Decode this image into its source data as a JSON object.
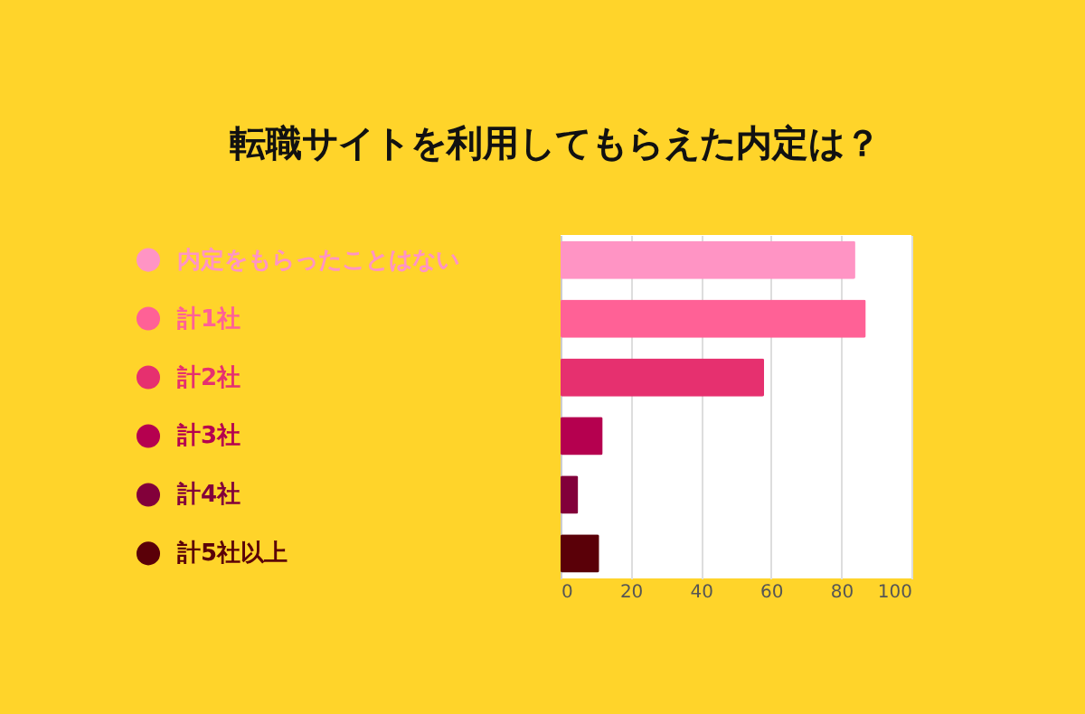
{
  "chart_data": {
    "type": "bar",
    "orientation": "horizontal",
    "title": "転職サイトを利用してもらえた内定は？",
    "categories": [
      "内定をもらったことはない",
      "計1社",
      "計2社",
      "計3社",
      "計4社",
      "計5社以上"
    ],
    "values": [
      84,
      87,
      58,
      12,
      5,
      11
    ],
    "colors": [
      "#ff94c4",
      "#ff6196",
      "#e6306f",
      "#b5004f",
      "#82003a",
      "#5a0008"
    ],
    "xlim": [
      0,
      100
    ],
    "xticks": [
      0,
      20,
      40,
      60,
      80,
      100
    ],
    "grid": "x",
    "tick_labels": "x",
    "marker": "circle"
  }
}
